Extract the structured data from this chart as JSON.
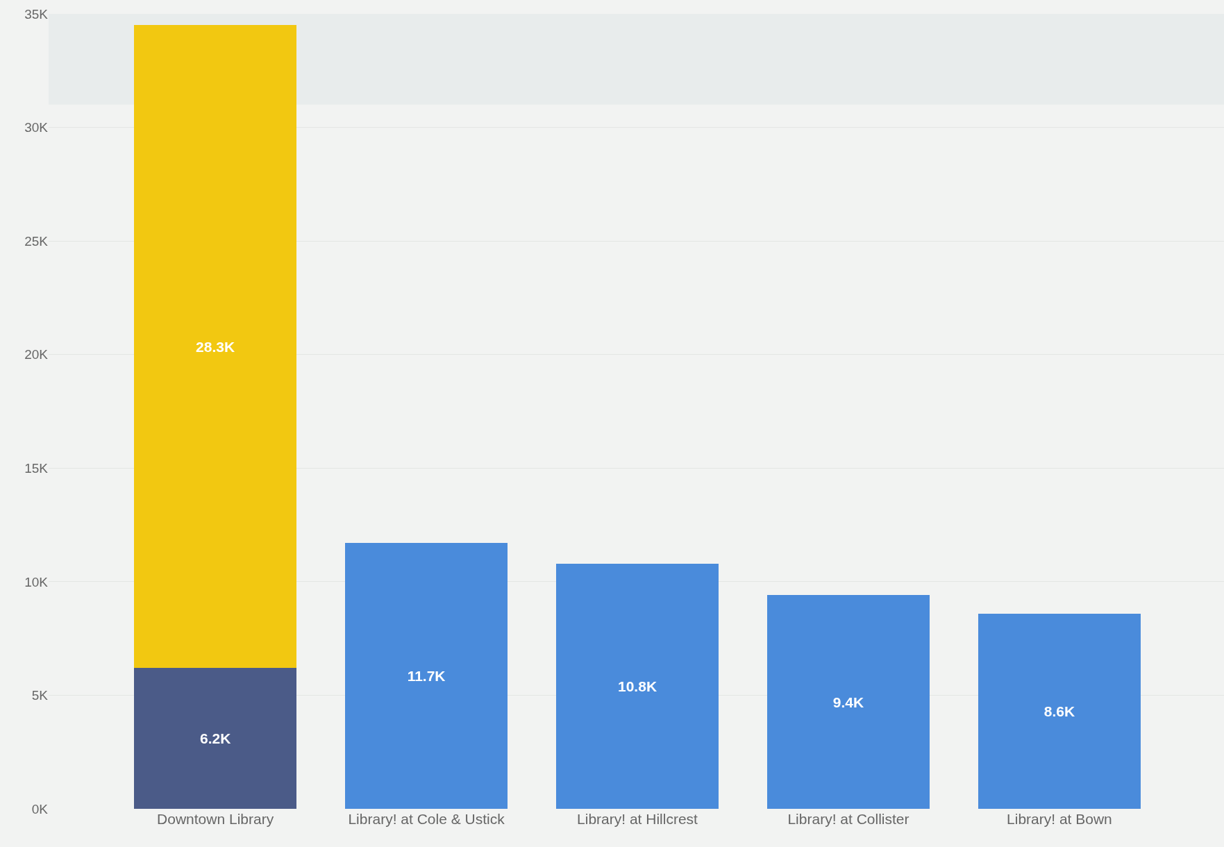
{
  "chart_data": {
    "type": "bar",
    "stacked": true,
    "categories": [
      "Downtown Library",
      "Library! at Cole & Ustick",
      "Library! at Hillcrest",
      "Library! at Collister",
      "Library! at Bown"
    ],
    "series": [
      {
        "colors": [
          "#4b5b88",
          "#4a8bdb",
          "#4a8bdb",
          "#4a8bdb",
          "#4a8bdb"
        ],
        "values": [
          6200,
          11700,
          10800,
          9400,
          8600
        ],
        "value_labels": [
          "6.2K",
          "11.7K",
          "10.8K",
          "9.4K",
          "8.6K"
        ]
      },
      {
        "color": "#f2c811",
        "values": [
          28300,
          null,
          null,
          null,
          null
        ],
        "value_labels": [
          "28.3K",
          null,
          null,
          null,
          null
        ]
      }
    ],
    "ylim": [
      0,
      35000
    ],
    "yticks": [
      {
        "value": 0,
        "label": "0K"
      },
      {
        "value": 5000,
        "label": "5K"
      },
      {
        "value": 10000,
        "label": "10K"
      },
      {
        "value": 15000,
        "label": "15K"
      },
      {
        "value": 20000,
        "label": "20K"
      },
      {
        "value": 25000,
        "label": "25K"
      },
      {
        "value": 30000,
        "label": "30K"
      },
      {
        "value": 35000,
        "label": "35K"
      }
    ],
    "bands": [
      {
        "axis": "y",
        "from": 31000,
        "to": 35000,
        "color": "#e8ecec"
      }
    ],
    "grid": "y"
  }
}
